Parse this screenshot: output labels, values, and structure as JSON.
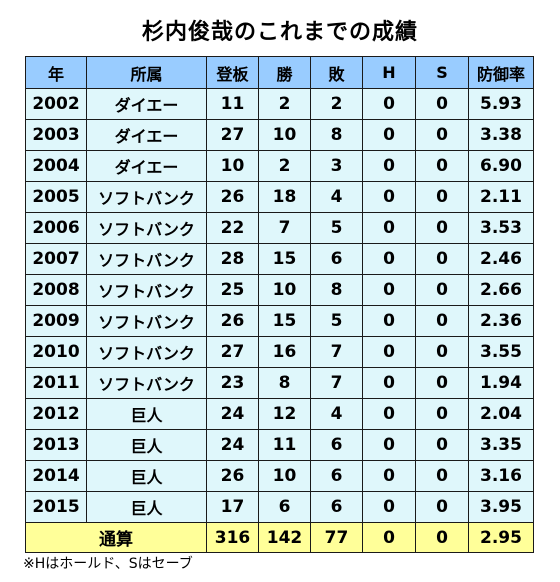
{
  "title": "杉内俊哉のこれまでの成績",
  "headers": [
    "年",
    "所属",
    "登板",
    "勝",
    "敗",
    "H",
    "S",
    "防御率"
  ],
  "rows": [
    [
      "2002",
      "ダイエー",
      "11",
      "2",
      "2",
      "0",
      "0",
      "5.93"
    ],
    [
      "2003",
      "ダイエー",
      "27",
      "10",
      "8",
      "0",
      "0",
      "3.38"
    ],
    [
      "2004",
      "ダイエー",
      "10",
      "2",
      "3",
      "0",
      "0",
      "6.90"
    ],
    [
      "2005",
      "ソフトバンク",
      "26",
      "18",
      "4",
      "0",
      "0",
      "2.11"
    ],
    [
      "2006",
      "ソフトバンク",
      "22",
      "7",
      "5",
      "0",
      "0",
      "3.53"
    ],
    [
      "2007",
      "ソフトバンク",
      "28",
      "15",
      "6",
      "0",
      "0",
      "2.46"
    ],
    [
      "2008",
      "ソフトバンク",
      "25",
      "10",
      "8",
      "0",
      "0",
      "2.66"
    ],
    [
      "2009",
      "ソフトバンク",
      "26",
      "15",
      "5",
      "0",
      "0",
      "2.36"
    ],
    [
      "2010",
      "ソフトバンク",
      "27",
      "16",
      "7",
      "0",
      "0",
      "3.55"
    ],
    [
      "2011",
      "ソフトバンク",
      "23",
      "8",
      "7",
      "0",
      "0",
      "1.94"
    ],
    [
      "2012",
      "巨人",
      "24",
      "12",
      "4",
      "0",
      "0",
      "2.04"
    ],
    [
      "2013",
      "巨人",
      "24",
      "11",
      "6",
      "0",
      "0",
      "3.35"
    ],
    [
      "2014",
      "巨人",
      "26",
      "10",
      "6",
      "0",
      "0",
      "3.16"
    ],
    [
      "2015",
      "巨人",
      "17",
      "6",
      "6",
      "0",
      "0",
      "3.95"
    ]
  ],
  "total": {
    "label": "通算",
    "values": [
      "316",
      "142",
      "77",
      "0",
      "0",
      "2.95"
    ]
  },
  "note": "※Hはホールド、Sはセーブ",
  "colors": {
    "header_bg": "#99ccff",
    "row_bg": "#dff7fb",
    "total_bg": "#ffff99",
    "border": "#1a1a1a"
  }
}
